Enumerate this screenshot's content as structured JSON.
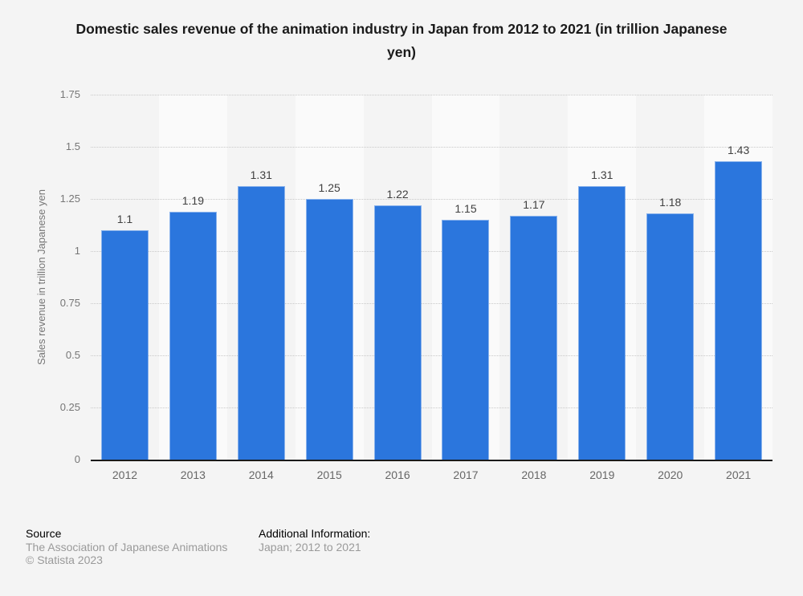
{
  "title": "Domestic sales revenue of the animation industry in Japan from 2012 to 2021 (in trillion Japanese yen)",
  "chart_data": {
    "type": "bar",
    "title": "Domestic sales revenue of the animation industry in Japan from 2012 to 2021 (in trillion Japanese yen)",
    "categories": [
      "2012",
      "2013",
      "2014",
      "2015",
      "2016",
      "2017",
      "2018",
      "2019",
      "2020",
      "2021"
    ],
    "values": [
      1.1,
      1.19,
      1.31,
      1.25,
      1.22,
      1.15,
      1.17,
      1.31,
      1.18,
      1.43
    ],
    "value_labels": [
      "1.1",
      "1.19",
      "1.31",
      "1.25",
      "1.22",
      "1.15",
      "1.17",
      "1.31",
      "1.18",
      "1.43"
    ],
    "xlabel": "",
    "ylabel": "Sales revenue in trillion Japanese yen",
    "ylim": [
      0,
      1.75
    ],
    "yticks": [
      "1.75",
      "1.5",
      "1.25",
      "1",
      "0.75",
      "0.5",
      "0.25",
      "0"
    ],
    "grid": "horizontal-dotted",
    "legend": "none",
    "bar_color": "#2b76dd",
    "band_color": "#fafafa",
    "axis_line_color": "#1a1a1a"
  },
  "footer": {
    "source_label": "Source",
    "source_name": "The Association of Japanese Animations",
    "copyright": "© Statista 2023",
    "additional_info_label": "Additional Information:",
    "additional_info_value": "Japan; 2012 to 2021"
  }
}
